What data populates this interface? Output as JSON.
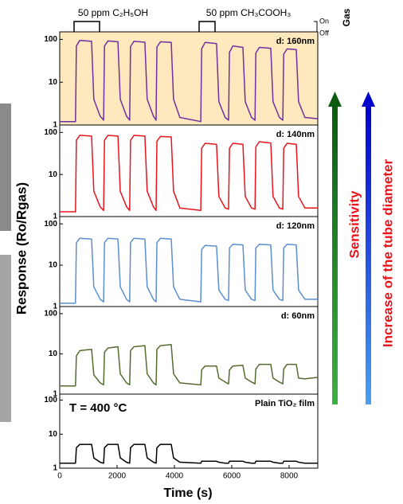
{
  "ylabel": "Response (Ro/Rgas)",
  "gas_panel": {
    "labels": [
      "50 ppm C₂H₅OH",
      "50 ppm CH₃COOH₃"
    ],
    "on": "On",
    "off": "Off",
    "title": "Gas"
  },
  "arrows": {
    "sensitivity": "Sensitivity",
    "diameter": "Increase of the tube diameter"
  },
  "chart_data": [
    {
      "type": "line",
      "label": "d: 160nm",
      "color": "#7030a0",
      "background": "#fde9bd",
      "log_y": true,
      "xlim": [
        0,
        9000
      ],
      "ylim": [
        1,
        150
      ],
      "yticks": [
        1,
        10,
        100
      ],
      "x": [
        0,
        550,
        580,
        700,
        1110,
        1190,
        1410,
        1530,
        1560,
        1680,
        2030,
        2110,
        2330,
        2440,
        2470,
        2590,
        2970,
        3050,
        3270,
        3360,
        3390,
        3510,
        3890,
        3970,
        4190,
        4920,
        4950,
        5070,
        5470,
        5550,
        5770,
        5890,
        5920,
        6040,
        6390,
        6470,
        6690,
        6810,
        6840,
        6960,
        7360,
        7440,
        7660,
        7780,
        7810,
        7930,
        8250,
        8330,
        8550,
        9000
      ],
      "values": [
        1.2,
        1.2,
        70,
        95,
        90,
        4,
        1.6,
        1.3,
        70,
        92,
        88,
        4,
        1.6,
        1.3,
        68,
        90,
        86,
        4,
        1.6,
        1.3,
        66,
        88,
        85,
        4,
        1.5,
        1.2,
        60,
        85,
        80,
        3.5,
        1.5,
        1.3,
        50,
        70,
        65,
        3.5,
        1.5,
        1.3,
        48,
        65,
        62,
        3.5,
        1.5,
        1.3,
        45,
        60,
        58,
        3.5,
        1.5,
        1.4
      ]
    },
    {
      "type": "line",
      "label": "d: 140nm",
      "color": "#e8141c",
      "log_y": true,
      "xlim": [
        0,
        9000
      ],
      "ylim": [
        1,
        150
      ],
      "yticks": [
        1,
        10,
        100
      ],
      "x": [
        0,
        550,
        580,
        700,
        1110,
        1190,
        1410,
        1530,
        1560,
        1680,
        2030,
        2110,
        2330,
        2440,
        2470,
        2590,
        2970,
        3050,
        3270,
        3360,
        3390,
        3510,
        3890,
        3970,
        4190,
        4920,
        4950,
        5070,
        5470,
        5550,
        5770,
        5890,
        5920,
        6040,
        6390,
        6470,
        6690,
        6810,
        6840,
        6960,
        7360,
        7440,
        7660,
        7780,
        7810,
        7930,
        8250,
        8330,
        8550,
        9000
      ],
      "values": [
        1.3,
        1.3,
        65,
        85,
        82,
        4,
        1.7,
        1.4,
        65,
        85,
        82,
        4,
        1.7,
        1.4,
        65,
        85,
        82,
        4,
        1.7,
        1.4,
        62,
        80,
        78,
        4,
        1.6,
        1.4,
        42,
        55,
        52,
        3,
        1.6,
        1.5,
        42,
        55,
        52,
        3,
        1.6,
        1.5,
        45,
        60,
        56,
        3,
        1.6,
        1.5,
        42,
        55,
        52,
        3,
        1.6,
        1.6
      ]
    },
    {
      "type": "line",
      "label": "d: 120nm",
      "color": "#5b8fd0",
      "log_y": true,
      "xlim": [
        0,
        9000
      ],
      "ylim": [
        1,
        150
      ],
      "yticks": [
        1,
        10,
        100
      ],
      "x": [
        0,
        550,
        580,
        700,
        1110,
        1190,
        1410,
        1530,
        1560,
        1680,
        2030,
        2110,
        2330,
        2440,
        2470,
        2590,
        2970,
        3050,
        3270,
        3360,
        3390,
        3510,
        3890,
        3970,
        4190,
        4920,
        4950,
        5070,
        5470,
        5550,
        5770,
        5890,
        5920,
        6040,
        6390,
        6470,
        6690,
        6810,
        6840,
        6960,
        7360,
        7440,
        7660,
        7780,
        7810,
        7930,
        8250,
        8330,
        8550,
        9000
      ],
      "values": [
        1.2,
        1.2,
        35,
        45,
        43,
        3,
        1.5,
        1.3,
        35,
        45,
        43,
        3,
        1.5,
        1.3,
        35,
        45,
        43,
        3,
        1.5,
        1.3,
        35,
        45,
        43,
        3,
        1.5,
        1.3,
        24,
        30,
        29,
        2.5,
        1.5,
        1.4,
        26,
        32,
        31,
        2.5,
        1.5,
        1.4,
        26,
        32,
        31,
        2.5,
        1.5,
        1.4,
        26,
        32,
        31,
        2.5,
        1.5,
        1.5
      ]
    },
    {
      "type": "line",
      "label": "d: 60nm",
      "color": "#556b2f",
      "log_y": true,
      "xlim": [
        0,
        9000
      ],
      "ylim": [
        1,
        150
      ],
      "yticks": [
        1,
        10,
        100
      ],
      "x": [
        0,
        550,
        580,
        700,
        1110,
        1190,
        1410,
        1530,
        1560,
        1680,
        2030,
        2110,
        2330,
        2440,
        2470,
        2590,
        2970,
        3050,
        3270,
        3360,
        3390,
        3510,
        3890,
        3970,
        4190,
        4920,
        4950,
        5070,
        5470,
        5550,
        5770,
        5890,
        5920,
        6040,
        6390,
        6470,
        6690,
        6810,
        6840,
        6960,
        7360,
        7440,
        7660,
        7780,
        7810,
        7930,
        8250,
        8330,
        8550,
        9000
      ],
      "values": [
        1.6,
        1.6,
        9,
        12,
        13,
        3,
        1.9,
        1.7,
        11,
        14,
        15,
        3.2,
        1.9,
        1.7,
        12,
        15,
        16,
        3.2,
        1.9,
        1.7,
        13,
        16,
        17,
        3.2,
        1.9,
        1.7,
        4,
        5,
        5,
        2.5,
        2,
        1.8,
        4,
        5,
        5.2,
        2.5,
        2,
        1.8,
        4.2,
        5.5,
        5.5,
        2.5,
        2,
        1.8,
        4.2,
        5.5,
        5.5,
        2.5,
        2.4,
        2.6
      ]
    },
    {
      "type": "line",
      "label": "Plain TiO₂ film",
      "annotation": "T = 400 °C",
      "color": "#000000",
      "log_y": true,
      "xlim": [
        0,
        9000
      ],
      "ylim": [
        1,
        150
      ],
      "yticks": [
        1,
        10,
        100
      ],
      "xticks": [
        0,
        2000,
        4000,
        6000,
        8000
      ],
      "xlabel": "Time (s)",
      "x": [
        0,
        550,
        580,
        700,
        1110,
        1190,
        1410,
        1530,
        1560,
        1680,
        2030,
        2110,
        2330,
        2440,
        2470,
        2590,
        2970,
        3050,
        3270,
        3360,
        3390,
        3510,
        3890,
        3970,
        4190,
        4920,
        4950,
        5070,
        5470,
        5550,
        5770,
        5890,
        5920,
        6040,
        6390,
        6470,
        6690,
        6810,
        6840,
        6960,
        7360,
        7440,
        7660,
        7780,
        7810,
        7930,
        8250,
        8330,
        8550,
        9000
      ],
      "values": [
        1.4,
        1.4,
        4,
        5,
        5,
        2,
        1.5,
        1.4,
        4,
        5,
        5,
        2,
        1.5,
        1.4,
        4,
        5,
        5,
        2,
        1.5,
        1.4,
        4,
        5,
        5,
        2,
        1.5,
        1.4,
        1.6,
        1.6,
        1.6,
        1.5,
        1.4,
        1.4,
        1.6,
        1.6,
        1.6,
        1.5,
        1.4,
        1.4,
        1.6,
        1.6,
        1.6,
        1.5,
        1.4,
        1.4,
        1.6,
        1.6,
        1.6,
        1.5,
        1.4,
        1.4
      ]
    }
  ]
}
